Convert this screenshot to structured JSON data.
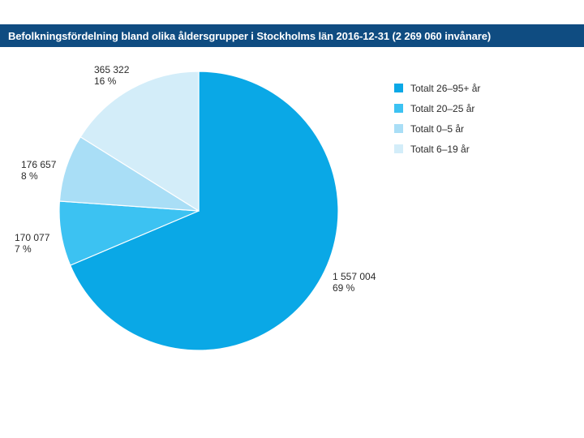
{
  "header": {
    "title": "Befolkningsfördelning bland olika åldersgrupper i Stockholms län 2016-12-31 (2 269 060 invånare)"
  },
  "colors": {
    "header_bg": "#0f4c81",
    "header_text": "#ffffff"
  },
  "chart_data": {
    "type": "pie",
    "title": "Befolkningsfördelning bland olika åldersgrupper i Stockholms län 2016-12-31 (2 269 060 invånare)",
    "legend_position": "right",
    "slices": [
      {
        "name": "Totalt 26–95+ år",
        "value": 1557004,
        "value_label": "1 557 004",
        "percent_label": "69 %",
        "color": "#0aa8e6"
      },
      {
        "name": "Totalt 20–25 år",
        "value": 170077,
        "value_label": "170 077",
        "percent_label": "7 %",
        "color": "#3cc2f2"
      },
      {
        "name": "Totalt 0–5 år",
        "value": 176657,
        "value_label": "176 657",
        "percent_label": "8 %",
        "color": "#a9def6"
      },
      {
        "name": "Totalt 6–19 år",
        "value": 365322,
        "value_label": "365 322",
        "percent_label": "16 %",
        "color": "#d3edf9"
      }
    ]
  }
}
